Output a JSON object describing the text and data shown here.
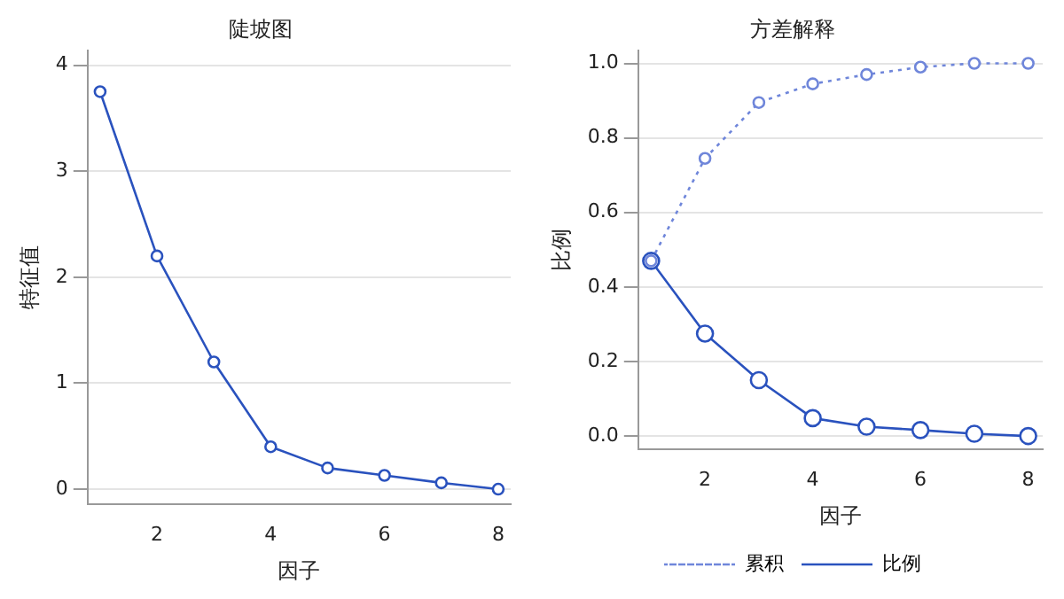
{
  "chart_data": [
    {
      "type": "line",
      "title": "陡坡图",
      "xlabel": "因子",
      "ylabel": "特征值",
      "x": [
        1,
        2,
        3,
        4,
        5,
        6,
        7,
        8
      ],
      "xlim": [
        0.78,
        8.22
      ],
      "xticks": [
        2,
        4,
        6,
        8
      ],
      "ylim": [
        -0.14,
        4.14
      ],
      "yticks": [
        0,
        1,
        2,
        3,
        4
      ],
      "grid": "y",
      "legend": false,
      "marker": "circle",
      "line_style": "solid",
      "series": [
        {
          "color": "#2a52be",
          "values": [
            3.75,
            2.2,
            1.2,
            0.4,
            0.2,
            0.13,
            0.06,
            0.0
          ]
        }
      ]
    },
    {
      "type": "line",
      "title": "方差解释",
      "xlabel": "因子",
      "ylabel": "比例",
      "x": [
        1,
        2,
        3,
        4,
        5,
        6,
        7,
        8
      ],
      "xlim": [
        0.76,
        8.27
      ],
      "xticks": [
        2,
        4,
        6,
        8
      ],
      "ylim": [
        -0.035,
        1.035
      ],
      "yticks": [
        {
          "value": 0,
          "label": "0.0"
        },
        {
          "value": 0.2,
          "label": "0.2"
        },
        {
          "value": 0.4,
          "label": "0.4"
        },
        {
          "value": 0.6,
          "label": "0.6"
        },
        {
          "value": 0.8,
          "label": "0.8"
        },
        {
          "value": 1,
          "label": "1.0"
        }
      ],
      "grid": "y",
      "legend": "bottom",
      "marker": "circle",
      "series": [
        {
          "name": "累积",
          "color": "#6f86da",
          "line_style": "dotted",
          "values": [
            0.47,
            0.745,
            0.895,
            0.945,
            0.97,
            0.99,
            1.0,
            1.0
          ]
        },
        {
          "name": "比例",
          "color": "#2a52be",
          "line_style": "solid",
          "values": [
            0.47,
            0.275,
            0.15,
            0.048,
            0.025,
            0.016,
            0.006,
            0.0
          ]
        }
      ]
    }
  ]
}
